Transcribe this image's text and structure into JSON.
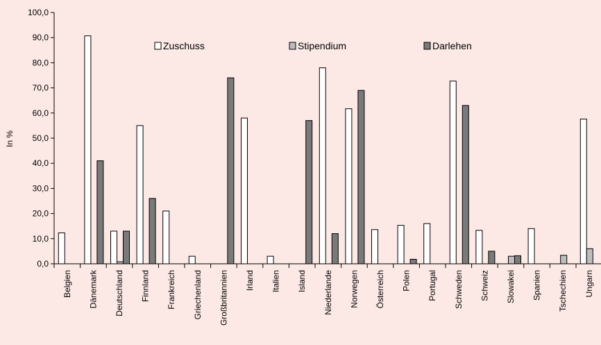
{
  "chart_data": {
    "type": "bar",
    "ylabel": "In %",
    "ylim": [
      0,
      100
    ],
    "yticks": [
      "0,0",
      "10,0",
      "20,0",
      "30,0",
      "40,0",
      "50,0",
      "60,0",
      "70,0",
      "80,0",
      "90,0",
      "100,0"
    ],
    "grid": false,
    "legend_position": "top",
    "categories": [
      "Belgien",
      "Dänemark",
      "Deutschland",
      "Finnland",
      "Frankreich",
      "Griechenland",
      "Großbritannien",
      "Irland",
      "Italien",
      "Island",
      "Niederlande",
      "Norwegen",
      "Österreich",
      "Polen",
      "Portugal",
      "Schweden",
      "Schweiz",
      "Slowakei",
      "Spanien",
      "Tschechien",
      "Ungarn"
    ],
    "series": [
      {
        "name": "Zuschuss",
        "color": "#ffffff",
        "values": [
          12.3,
          90.7,
          13.0,
          55.0,
          21.0,
          3.0,
          0,
          58.0,
          3.0,
          0,
          78.0,
          61.7,
          13.6,
          15.3,
          16.0,
          72.7,
          13.3,
          0,
          14.0,
          0,
          57.6
        ]
      },
      {
        "name": "Stipendium",
        "color": "#bdbdbd",
        "values": [
          0,
          0,
          0.8,
          0,
          0,
          0,
          0,
          0,
          0,
          0,
          0,
          0,
          0,
          0,
          0,
          0,
          0,
          3.0,
          0,
          3.4,
          6.0
        ]
      },
      {
        "name": "Darlehen",
        "color": "#7a7a7a",
        "values": [
          0,
          41.0,
          13.0,
          26.0,
          0,
          0,
          74.0,
          0,
          0,
          57.0,
          12.0,
          69.0,
          0,
          1.8,
          0,
          63.0,
          5.0,
          3.2,
          0,
          0,
          0
        ]
      }
    ]
  }
}
